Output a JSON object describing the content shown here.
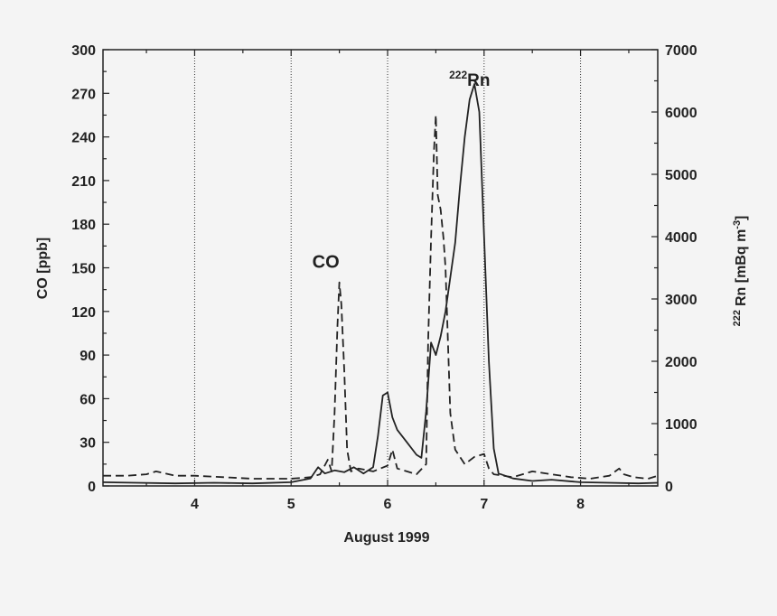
{
  "chart_data": {
    "type": "line",
    "xlabel": "August 1999",
    "ylabel_left": "CO [ppb]",
    "ylabel_right_prefix": "222",
    "ylabel_right": "Rn [mBq m",
    "ylabel_right_exp": "-3",
    "ylabel_right_suffix": "]",
    "xlim": [
      3.05,
      8.8
    ],
    "ylim_left": [
      0,
      300
    ],
    "ylim_right": [
      0,
      7000
    ],
    "x_ticks": [
      "4",
      "5",
      "6",
      "7",
      "8"
    ],
    "y_left_ticks": [
      "0",
      "30",
      "60",
      "90",
      "120",
      "150",
      "180",
      "210",
      "240",
      "270",
      "300"
    ],
    "y_right_ticks": [
      "0",
      "1000",
      "2000",
      "3000",
      "4000",
      "5000",
      "6000",
      "7000"
    ],
    "grid": "vertical dotted lines at integer days",
    "colors": {
      "line": "#222222",
      "background": "#f4f4f4"
    },
    "annotations": [
      {
        "text": "CO",
        "x": 5.36,
        "y": 150
      },
      {
        "text_sup": "222",
        "text": "Rn",
        "x": 6.9,
        "y": 6450
      }
    ],
    "series": [
      {
        "axis": "left",
        "style": "dashed",
        "x": [
          3.05,
          3.3,
          3.5,
          3.6,
          3.8,
          4.0,
          4.3,
          4.6,
          4.9,
          5.0,
          5.2,
          5.3,
          5.38,
          5.42,
          5.45,
          5.48,
          5.5,
          5.52,
          5.55,
          5.58,
          5.62,
          5.7,
          5.85,
          6.0,
          6.05,
          6.1,
          6.2,
          6.3,
          6.4,
          6.42,
          6.45,
          6.48,
          6.5,
          6.52,
          6.55,
          6.58,
          6.6,
          6.65,
          6.7,
          6.8,
          6.9,
          7.0,
          7.02,
          7.05,
          7.1,
          7.3,
          7.5,
          7.7,
          7.9,
          8.1,
          8.3,
          8.4,
          8.45,
          8.55,
          8.7,
          8.8
        ],
        "y": [
          7,
          7,
          8,
          10,
          7,
          7,
          6,
          5,
          5,
          5,
          6,
          8,
          18,
          10,
          50,
          110,
          140,
          125,
          80,
          25,
          10,
          12,
          10,
          14,
          25,
          12,
          10,
          8,
          15,
          100,
          170,
          230,
          255,
          200,
          190,
          170,
          150,
          50,
          25,
          15,
          20,
          22,
          18,
          12,
          8,
          6,
          10,
          8,
          6,
          5,
          7,
          12,
          8,
          6,
          5,
          7
        ]
      },
      {
        "axis": "right",
        "style": "solid",
        "x": [
          3.05,
          3.4,
          3.8,
          4.2,
          4.6,
          5.0,
          5.2,
          5.28,
          5.35,
          5.45,
          5.55,
          5.65,
          5.75,
          5.85,
          5.9,
          5.95,
          6.0,
          6.05,
          6.1,
          6.2,
          6.3,
          6.35,
          6.4,
          6.45,
          6.5,
          6.55,
          6.6,
          6.7,
          6.75,
          6.8,
          6.85,
          6.9,
          6.95,
          7.0,
          7.05,
          7.1,
          7.15,
          7.3,
          7.5,
          7.7,
          8.0,
          8.3,
          8.6,
          8.8
        ],
        "y": [
          60,
          50,
          40,
          50,
          40,
          60,
          120,
          300,
          200,
          250,
          220,
          300,
          200,
          300,
          800,
          1450,
          1500,
          1100,
          900,
          700,
          500,
          450,
          1200,
          2300,
          2100,
          2400,
          2800,
          3900,
          4800,
          5600,
          6200,
          6450,
          6000,
          4000,
          2000,
          600,
          200,
          120,
          80,
          100,
          60,
          50,
          40,
          50
        ]
      }
    ]
  }
}
